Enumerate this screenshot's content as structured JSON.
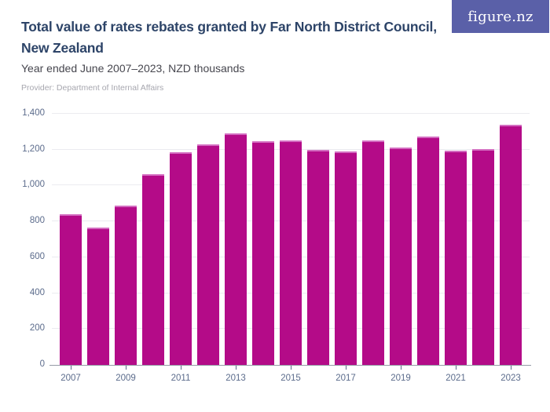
{
  "header": {
    "title_line1": "Total value of rates rebates granted by Far North District Council,",
    "title_line2": "New Zealand",
    "subtitle": "Year ended June 2007–2023, NZD thousands",
    "provider": "Provider: Department of Internal Affairs",
    "logo_text": "figure.nz"
  },
  "colors": {
    "bar": "#b40b88",
    "bar_top_edge": "#d36cc0",
    "logo_background": "#5a60a8",
    "title_text": "#2d4468",
    "subtitle_text": "#46464e",
    "provider_text": "#a7a7af",
    "axis_label_text": "#5c6c8c",
    "gridline": "#ebebf0",
    "axis_line": "#959ba7"
  },
  "chart_data": {
    "type": "bar",
    "title": "Total value of rates rebates granted by Far North District Council, New Zealand",
    "subtitle": "Year ended June 2007–2023, NZD thousands",
    "provider": "Department of Internal Affairs",
    "unit": "NZD thousands",
    "categories": [
      "2007",
      "2008",
      "2009",
      "2010",
      "2011",
      "2012",
      "2013",
      "2014",
      "2015",
      "2016",
      "2017",
      "2018",
      "2019",
      "2020",
      "2021",
      "2022",
      "2023"
    ],
    "values": [
      840,
      765,
      890,
      1065,
      1185,
      1230,
      1290,
      1245,
      1250,
      1200,
      1190,
      1250,
      1210,
      1275,
      1195,
      1205,
      1340
    ],
    "xlabel": "",
    "ylabel": "",
    "ylim": [
      0,
      1400
    ],
    "ytick_values": [
      0,
      200,
      400,
      600,
      800,
      1000,
      1200,
      1400
    ],
    "ytick_labels": [
      "0",
      "200",
      "400",
      "600",
      "800",
      "1,000",
      "1,200",
      "1,400"
    ],
    "xtick_labels": [
      "2007",
      "2009",
      "2011",
      "2013",
      "2015",
      "2017",
      "2019",
      "2021",
      "2023"
    ],
    "grid": true,
    "legend_position": "none",
    "bar_color": "#b40b88"
  }
}
